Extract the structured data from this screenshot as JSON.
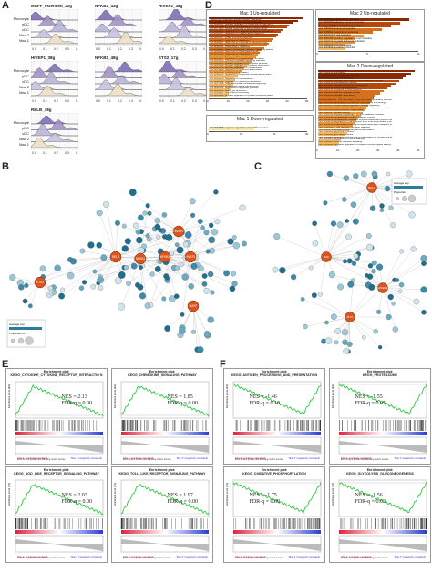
{
  "panels": {
    "A": "A",
    "B": "B",
    "C": "C",
    "D": "D",
    "E": "E",
    "F": "F"
  },
  "ridge": {
    "row_labels": [
      "Monocyte",
      "pDC",
      "cDC",
      "Mac 2",
      "Mac 1"
    ],
    "x_ticks": [
      "0.0",
      "0.1",
      "0.2",
      "0.3",
      "0.4"
    ],
    "plots": [
      {
        "title": "MAFF_extended_32g"
      },
      {
        "title": "NFKB2_43g"
      },
      {
        "title": "HIVEP2_38g"
      },
      {
        "title": "HIVEP1_38g"
      },
      {
        "title": "NFKB1_48g"
      },
      {
        "title": "ETS2_17g"
      },
      {
        "title": "RELB_38g"
      }
    ],
    "colors": {
      "monocyte": "#7f6fb5",
      "pdc": "#a493c7",
      "cdc": "#b8b5d8",
      "mac2": "#c9c2e0",
      "mac1": "#ede0c6"
    }
  },
  "go": {
    "mac1_up": {
      "title": "Mac 1 Up-regulated",
      "xlabel": "-log(%P)",
      "terms": [
        "R-HSA-168249: innate immune system",
        "hsa04060: cytokine-cytokine receptor interaction",
        "GO:0002224: toll-like receptor signaling pathway",
        "GO:0032103: positive regulation of response to external stimulus",
        "R-HSA-1280215: cytokine signaling in immune system",
        "GO:0071222: cellular response to lipopolysaccharide",
        "GO:0043122: regulation of I-kappaB kinase/NF-kappaB signaling",
        "GO:0050727: regulation of inflammatory response",
        "GO:0001817: regulation of cytokine production",
        "GO:0045087: innate immune response",
        "GO:0009617: response to bacterium",
        "GO:0002237: response to molecule of bacterial origin",
        "GO:0034097: response to cytokine",
        "GO:0006954: inflammatory response",
        "GO:0002221: pattern recognition receptor signaling pathway",
        "GO:0032496: response to lipopolysaccharide",
        "GO:0070555: response to interleukin-1",
        "GO:0010942: positive regulation of cell death",
        "GO:0043067: regulation of programmed cell death",
        "GO:0019221: cytokine-mediated signaling pathway",
        "GO:0043065: positive regulation of apoptotic process",
        "GO:0001819: positive regulation of cytokine production",
        "GO:0045785: positive regulation of cell adhesion",
        "GO:0051249: regulation of lymphocyte activation",
        "GO:0046649: lymphocyte activation",
        "GO:0032101: regulation of response to external stimulus",
        "GO:0010604: positive regulation of macromolecule metabolic process",
        "GO:0030155: regulation of cell adhesion",
        "GO:0002694: regulation of leukocyte activation",
        "GO:0007249: I-kappaB kinase/NF-kappaB signaling",
        "GO:0035556: intracellular signal transduction",
        "GO:0042981: regulation of apoptotic process",
        "GO:0045321: leukocyte activation",
        "GO:0009611: response to wounding",
        "GO:0001934: positive regulation of protein phosphorylation"
      ],
      "values": [
        42,
        40,
        38,
        36,
        35,
        33,
        32,
        31,
        30,
        29,
        28,
        27,
        26,
        25,
        24,
        23,
        22,
        21,
        20,
        19,
        18,
        17,
        16,
        15,
        14,
        13,
        12,
        12,
        11,
        11,
        10,
        10,
        9,
        9,
        8
      ],
      "xticks": [
        "0",
        "10",
        "20",
        "30",
        "40",
        "50"
      ]
    },
    "mac1_down": {
      "title": "Mac 1 Down-regulated",
      "terms": [
        "GO:0045596: negative regulation of cell differentiation"
      ],
      "values": [
        14
      ],
      "xticks": [
        "0",
        "10",
        "20",
        "30"
      ]
    },
    "mac2_up": {
      "title": "Mac 2 Up-regulated",
      "terms": [
        "GO:0006954: inflammatory response",
        "GO:0002250: adaptive immune response",
        "R-HSA-6783783: interleukin-10 signaling",
        "GO:0050900: leukocyte migration",
        "GO:0009611: response to wounding",
        "GO:0042110: T cell activation",
        "GO:0030335: positive regulation of cell migration",
        "GO:0002274: myeloid leukocyte activation",
        "GO:0060326: cell chemotaxis",
        "GO:0001816: cytokine production"
      ],
      "values": [
        10,
        9,
        8,
        7,
        6,
        5,
        4,
        4,
        3,
        3
      ],
      "xticks": [
        "0",
        "5",
        "10"
      ]
    },
    "mac2_down": {
      "title": "Mac 2 Down-regulated",
      "terms": [
        "R-HSA-72766: translation",
        "GO:0006412: translation",
        "R-HSA-8953854: metabolism of RNA",
        "GO:0006364: rRNA processing",
        "GO:0000184: nuclear-transcribed mRNA catabolic process",
        "GO:0006413: translational initiation",
        "GO:0044085: cellular component biogenesis",
        "GO:0042254: ribosome biogenesis",
        "GO:0006119: oxidative phosphorylation",
        "GO:0022900: electron transport chain",
        "GO:0045333: cellular respiration",
        "GO:0015980: energy derivation by oxidation of organic compounds",
        "R-HSA-1428517: the citric acid (TCA) cycle and respiratory electron transport",
        "GO:0006091: generation of precursor metabolites and energy",
        "GO:0010257: NADH dehydrogenase complex assembly",
        "GO:0033108: mitochondrial respiratory chain complex assembly",
        "GO:0007005: mitochondrion organization",
        "GO:0006457: protein folding",
        "GO:0006511: ubiquitin-dependent protein catabolic process",
        "GO:0010498: proteasomal protein catabolic process",
        "GO:0043161: proteasome-mediated ubiquitin-dependent protein catabolic process",
        "GO:0061418: regulation of transcription from RNA polymerase II promoter in response to hypoxia",
        "GO:0031145: anaphase-promoting complex-dependent catabolic process",
        "GO:0050852: T cell receptor signaling pathway",
        "GO:0002479: antigen processing and presentation",
        "GO:0006096: glycolytic process",
        "GO:0006094: gluconeogenesis",
        "GO:0019884: antigen processing and presentation of exogenous antigen",
        "GO:0043488: regulation of mRNA stability",
        "GO:0038061: NIK/NF-kappaB signaling",
        "GO:0051436: negative regulation of ubiquitin-protein ligase activity"
      ],
      "values": [
        50,
        48,
        46,
        44,
        42,
        40,
        38,
        36,
        34,
        32,
        30,
        29,
        28,
        27,
        26,
        25,
        24,
        23,
        22,
        21,
        20,
        19,
        18,
        17,
        16,
        15,
        14,
        13,
        12,
        11,
        10
      ],
      "xticks": [
        "0",
        "10",
        "20",
        "30",
        "40",
        "50"
      ]
    },
    "bar_colors": [
      "#8a2a05",
      "#b5480f",
      "#d4711f",
      "#e8943a",
      "#f2b764",
      "#f7d889"
    ],
    "low_color": "#f6e3a3"
  },
  "network_b": {
    "hubs": [
      "RELB",
      "NFKB1",
      "NFKB2",
      "HIVEP1",
      "HIVEP2",
      "MAFF",
      "ETS2"
    ],
    "legend": {
      "title": "Average exp",
      "subtitle": "Proportion of ..."
    }
  },
  "network_c": {
    "hubs": [
      "MAF",
      "HIVEP2",
      "BCL6",
      "MYC"
    ],
    "legend": {
      "title": "Average exp",
      "subtitle": "Proportion"
    }
  },
  "gsea": {
    "header": "Enrichment plot:",
    "ylabel": "Enrichment score (ES)",
    "legend": [
      "Enrichment profile",
      "Hits",
      "Ranking metric scores"
    ],
    "left_scale": "'Mac 1' (positively correlated)",
    "right_scale": "'Mac 2' (negatively correlated)",
    "plots": [
      {
        "title": "KEGG_CYTOKINE_CYTOKINE_RECEPTOR_INTERACTIO N",
        "nes": "NES = 2.13",
        "fdr": "FDR-q = 0.00",
        "shape": "up"
      },
      {
        "title": "KEGG_CHEMOKINE_SIGNALING_PATHWAY",
        "nes": "NES = 1.85",
        "fdr": "FDR-q = 0.00",
        "shape": "up"
      },
      {
        "title": "KEGG_NOD_LIKE_RECEPTOR_SIGNALING_PATHWAY",
        "nes": "NES = 2.03",
        "fdr": "FDR-q = 0.00",
        "shape": "up"
      },
      {
        "title": "KEGG_TOLL_LIKE_RECEPTOR_SIGNALING_PATHWAY",
        "nes": "NES = 1.97",
        "fdr": "FDR-q = 0.00",
        "shape": "up"
      },
      {
        "title": "KEGG_ANTIGEN_PROCESSING_AND_PRESENTATION",
        "nes": "NES = -1.46",
        "fdr": "FDR-q = 0.10",
        "shape": "down"
      },
      {
        "title": "KEGG_PROTEASOME",
        "nes": "NES = -1.55",
        "fdr": "FDR-q = 0.05",
        "shape": "down"
      },
      {
        "title": "KEGG_OXIDATIVE_PHOSPHORYLATION",
        "nes": "NES = -1.75",
        "fdr": "FDR-q = 0.00",
        "shape": "down"
      },
      {
        "title": "KEGG_GLYCOLYSIS_GLUCONEOGENESIS",
        "nes": "NES = -1.56",
        "fdr": "FDR-q = 0.03",
        "shape": "down"
      }
    ]
  }
}
